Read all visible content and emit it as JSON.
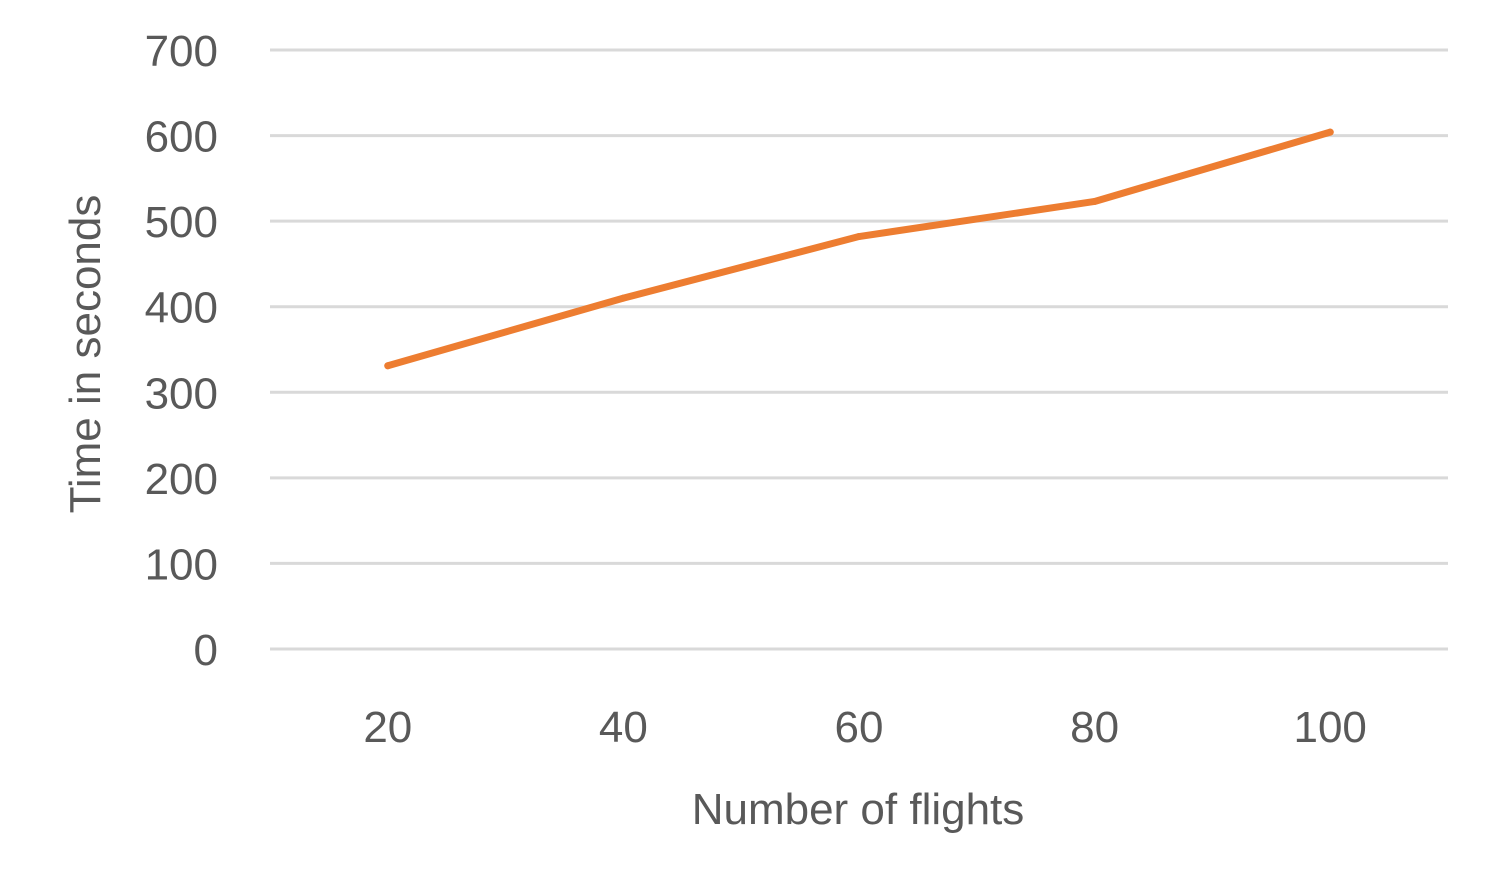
{
  "chart_data": {
    "type": "line",
    "title": "",
    "xlabel": "Number of flights",
    "ylabel": "Time in seconds",
    "categories": [
      "20",
      "40",
      "60",
      "80",
      "100"
    ],
    "series": [
      {
        "values": [
          331,
          410,
          482,
          523,
          604
        ]
      }
    ],
    "ylim": [
      0,
      700
    ],
    "yticks": [
      0,
      100,
      200,
      300,
      400,
      500,
      600,
      700
    ],
    "grid": true,
    "legend": "none"
  },
  "colors": {
    "series": "#ed7d31",
    "grid": "#d9d9d9",
    "text": "#595959"
  }
}
